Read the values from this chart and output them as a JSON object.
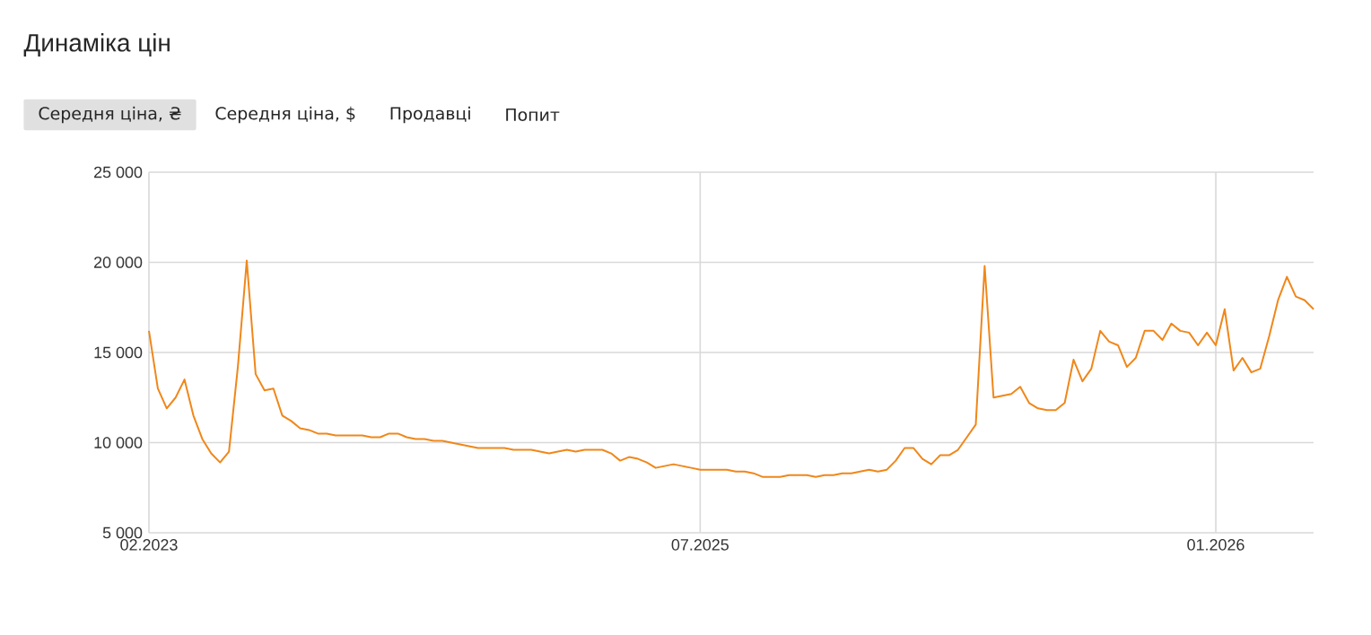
{
  "chart_data": {
    "type": "line",
    "title": "Динаміка цін",
    "annotations": [
      "Середня ціна, ₴",
      "Середня ціна, $",
      "Продавці",
      "Попит"
    ],
    "categories": [
      "02.2023",
      null,
      null,
      null,
      null,
      null,
      null,
      null,
      null,
      null,
      null,
      null,
      null,
      null,
      null,
      null,
      null,
      null,
      null,
      null,
      null,
      null,
      null,
      null,
      null,
      null,
      null,
      null,
      null,
      null,
      null,
      null,
      null,
      null,
      null,
      null,
      null,
      null,
      null,
      null,
      null,
      null,
      null,
      null,
      null,
      null,
      null,
      null,
      null,
      null,
      null,
      null,
      null,
      null,
      null,
      null,
      null,
      null,
      null,
      null,
      null,
      null,
      "07.2025",
      null,
      null,
      null,
      null,
      null,
      null,
      null,
      null,
      null,
      null,
      null,
      null,
      null,
      null,
      null,
      null,
      null,
      null,
      null,
      null,
      null,
      null,
      null,
      null,
      null,
      null,
      null,
      null,
      null,
      null,
      null,
      null,
      null,
      null,
      null,
      null,
      null,
      null,
      null,
      null,
      null,
      null,
      null,
      null,
      null,
      null,
      null,
      null,
      null,
      null,
      null,
      null,
      null,
      null,
      null,
      null,
      null,
      "01.2026",
      null,
      null,
      null,
      null,
      null,
      null,
      null,
      null,
      null,
      null,
      null
    ],
    "values": [
      16200,
      13000,
      11900,
      12500,
      13500,
      11500,
      10200,
      9400,
      8900,
      9500,
      14200,
      20100,
      13800,
      12900,
      13000,
      11500,
      11200,
      10800,
      10700,
      10500,
      10500,
      10400,
      10400,
      10400,
      10400,
      10300,
      10300,
      10500,
      10500,
      10300,
      10200,
      10200,
      10100,
      10100,
      10000,
      9900,
      9800,
      9700,
      9700,
      9700,
      9700,
      9600,
      9600,
      9600,
      9500,
      9400,
      9500,
      9600,
      9500,
      9600,
      9600,
      9600,
      9400,
      9000,
      9200,
      9100,
      8900,
      8600,
      8700,
      8800,
      8700,
      8600,
      8500,
      8500,
      8500,
      8500,
      8400,
      8400,
      8300,
      8100,
      8100,
      8100,
      8200,
      8200,
      8200,
      8100,
      8200,
      8200,
      8300,
      8300,
      8400,
      8500,
      8400,
      8500,
      9000,
      9700,
      9700,
      9100,
      8800,
      9300,
      9300,
      9600,
      10300,
      11000,
      19800,
      12500,
      12600,
      12700,
      13100,
      12200,
      11900,
      11800,
      11800,
      12200,
      14600,
      13400,
      14100,
      16200,
      15600,
      15400,
      14200,
      14700,
      16200,
      16200,
      15700,
      16600,
      16200,
      16100,
      15400,
      16100,
      15400,
      17400,
      14000,
      14700,
      13900,
      14100,
      15900,
      17900,
      19200,
      18100,
      17900,
      17400
    ],
    "color": "#f0871a",
    "ylim": [
      5000,
      25000
    ],
    "yticks": [
      {
        "value": 5000,
        "label": "5 000"
      },
      {
        "value": 10000,
        "label": "10 000"
      },
      {
        "value": 15000,
        "label": "15 000"
      },
      {
        "value": 20000,
        "label": "20 000"
      },
      {
        "value": 25000,
        "label": "25 000"
      }
    ],
    "grid": true
  }
}
